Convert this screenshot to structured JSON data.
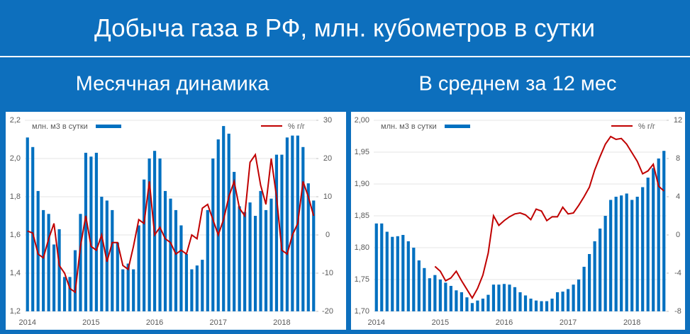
{
  "title": "Добыча газа в РФ, млн. кубометров в сутки",
  "chart_data": [
    {
      "type": "combo",
      "title": "Месячная динамика",
      "legend": "top",
      "grid": true,
      "categories": [
        "2014",
        null,
        null,
        null,
        null,
        null,
        null,
        null,
        null,
        null,
        null,
        null,
        "2015",
        null,
        null,
        null,
        null,
        null,
        null,
        null,
        null,
        null,
        null,
        null,
        "2016",
        null,
        null,
        null,
        null,
        null,
        null,
        null,
        null,
        null,
        null,
        null,
        "2017",
        null,
        null,
        null,
        null,
        null,
        null,
        null,
        null,
        null,
        null,
        null,
        "2018",
        null,
        null,
        null,
        null,
        null,
        null
      ],
      "ylim": [
        1.2,
        2.2
      ],
      "yticks": [
        {
          "value": 1.2,
          "label": "1,2"
        },
        {
          "value": 1.4,
          "label": "1,4"
        },
        {
          "value": 1.6,
          "label": "1,6"
        },
        {
          "value": 1.8,
          "label": "1,8"
        },
        {
          "value": 2.0,
          "label": "2,0"
        },
        {
          "value": 2.2,
          "label": "2,2"
        }
      ],
      "y2lim": [
        -20,
        30
      ],
      "y2ticks": [
        -20,
        -10,
        0,
        10,
        20,
        30
      ],
      "series": [
        {
          "name": "млн. м3 в сутки",
          "type": "bar",
          "color": "#0070c0",
          "values": [
            2.11,
            2.06,
            1.83,
            1.73,
            1.71,
            1.55,
            1.63,
            1.38,
            1.38,
            1.52,
            1.71,
            2.03,
            2.01,
            2.03,
            1.8,
            1.78,
            1.73,
            1.56,
            1.42,
            1.45,
            1.42,
            1.65,
            1.89,
            2.0,
            2.04,
            2.0,
            1.83,
            1.79,
            1.73,
            1.65,
            1.5,
            1.42,
            1.44,
            1.47,
            1.73,
            2.0,
            2.1,
            2.17,
            2.13,
            1.93,
            1.75,
            1.72,
            1.77,
            1.7,
            1.83,
            1.73,
            1.79,
            2.02,
            2.02,
            2.11,
            2.12,
            2.12,
            2.06,
            1.87,
            1.78
          ]
        },
        {
          "name": "% г/г",
          "type": "line",
          "axis": "y2",
          "color": "#c00000",
          "values": [
            1,
            0.5,
            -5,
            -6,
            -1,
            3,
            -8,
            -10,
            -14,
            -15,
            -3,
            5,
            -3,
            -4,
            0,
            -7,
            -2,
            -2,
            -8,
            -9,
            -3,
            4,
            3,
            14,
            0,
            2,
            -1,
            -2,
            -5,
            -4,
            -5,
            0,
            -1,
            7,
            8,
            4,
            0,
            4,
            10,
            14,
            7,
            5,
            19,
            21,
            13,
            8,
            20,
            10,
            -4,
            -5,
            0,
            3,
            14,
            10,
            5
          ]
        }
      ]
    },
    {
      "type": "combo",
      "title": "В среднем за 12 мес",
      "legend": "top",
      "grid": true,
      "categories": [
        "2014",
        null,
        null,
        null,
        null,
        null,
        null,
        null,
        null,
        null,
        null,
        null,
        "2015",
        null,
        null,
        null,
        null,
        null,
        null,
        null,
        null,
        null,
        null,
        null,
        "2016",
        null,
        null,
        null,
        null,
        null,
        null,
        null,
        null,
        null,
        null,
        null,
        "2017",
        null,
        null,
        null,
        null,
        null,
        null,
        null,
        null,
        null,
        null,
        null,
        "2018",
        null,
        null,
        null,
        null,
        null,
        null
      ],
      "ylim": [
        1.7,
        2.0
      ],
      "yticks": [
        {
          "value": 1.7,
          "label": "1,70"
        },
        {
          "value": 1.75,
          "label": "1,75"
        },
        {
          "value": 1.8,
          "label": "1,80"
        },
        {
          "value": 1.85,
          "label": "1,85"
        },
        {
          "value": 1.9,
          "label": "1,90"
        },
        {
          "value": 1.95,
          "label": "1,95"
        },
        {
          "value": 2.0,
          "label": "2,00"
        }
      ],
      "y2lim": [
        -8,
        12
      ],
      "y2ticks": [
        -8,
        -4,
        0,
        4,
        8,
        12
      ],
      "series": [
        {
          "name": "млн. м3 в сутки",
          "type": "bar",
          "color": "#0070c0",
          "values": [
            1.838,
            1.838,
            1.825,
            1.817,
            1.818,
            1.82,
            1.81,
            1.8,
            1.78,
            1.768,
            1.752,
            1.757,
            1.75,
            1.745,
            1.74,
            1.733,
            1.73,
            1.722,
            1.713,
            1.717,
            1.72,
            1.726,
            1.742,
            1.742,
            1.743,
            1.742,
            1.738,
            1.73,
            1.725,
            1.72,
            1.717,
            1.716,
            1.716,
            1.72,
            1.73,
            1.731,
            1.735,
            1.742,
            1.75,
            1.77,
            1.79,
            1.81,
            1.83,
            1.85,
            1.875,
            1.88,
            1.882,
            1.885,
            1.875,
            1.88,
            1.895,
            1.91,
            1.925,
            1.94,
            1.952
          ]
        },
        {
          "name": "% г/г",
          "type": "line",
          "axis": "y2",
          "color": "#c00000",
          "values": [
            null,
            null,
            null,
            null,
            null,
            null,
            null,
            null,
            null,
            null,
            null,
            -3.3,
            -3.8,
            -4.8,
            -4.5,
            -3.8,
            -4.8,
            -5.7,
            -6.6,
            -5.6,
            -4.2,
            -1.9,
            2.0,
            1.0,
            1.5,
            1.9,
            2.2,
            2.3,
            2.1,
            1.6,
            2.7,
            2.5,
            1.5,
            1.9,
            1.9,
            2.9,
            2.2,
            2.3,
            3.1,
            4.0,
            5.0,
            6.8,
            8.2,
            9.5,
            10.3,
            10.0,
            10.1,
            9.5,
            8.6,
            7.7,
            6.4,
            6.7,
            7.4,
            5.1,
            4.6
          ]
        }
      ]
    }
  ]
}
